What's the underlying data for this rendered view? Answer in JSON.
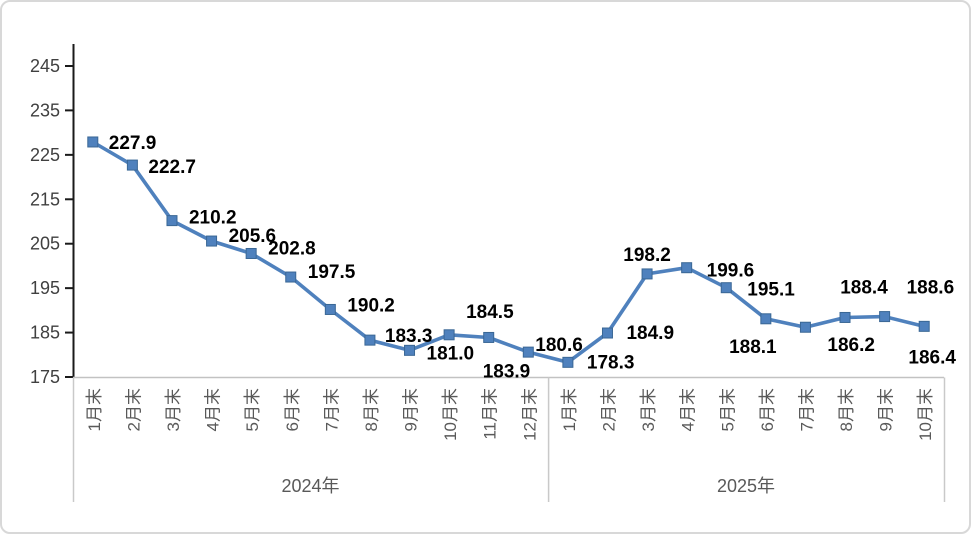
{
  "frame": {
    "background": "#FFFFFF",
    "border_color": "#D8D8D8"
  },
  "chart_data": {
    "type": "line",
    "title": "",
    "legend": "none",
    "grid": false,
    "series": [
      {
        "name": "",
        "color": "#4F81BD",
        "marker": "square",
        "marker_edge_color": "#3A6795",
        "values": [
          227.9,
          222.7,
          210.2,
          205.6,
          202.8,
          197.5,
          190.2,
          183.3,
          181.0,
          184.5,
          183.9,
          180.6,
          178.3,
          184.9,
          198.2,
          199.6,
          195.1,
          188.1,
          186.2,
          188.4,
          188.6,
          186.4
        ]
      }
    ],
    "categories": [
      "1月末",
      "2月末",
      "3月末",
      "4月末",
      "5月末",
      "6月末",
      "7月末",
      "8月末",
      "9月末",
      "10月末",
      "11月末",
      "12月末",
      "1月末",
      "2月末",
      "3月末",
      "4月末",
      "5月末",
      "6月末",
      "7月末",
      "8月末",
      "9月末",
      "10月末"
    ],
    "category_groups": [
      {
        "label": "2024年",
        "count": 12
      },
      {
        "label": "2025年",
        "count": 10
      }
    ],
    "y_axis": {
      "min": 175,
      "max": 245,
      "step": 10,
      "tick_labels": [
        "245",
        "235",
        "225",
        "215",
        "205",
        "195",
        "185",
        "175"
      ]
    },
    "x_axis": {
      "label_rotation": -90
    },
    "data_labels": {
      "show": true,
      "decimals": 1,
      "color": "#000000",
      "placements": [
        [
          "s",
          16,
          7
        ],
        [
          "s",
          16,
          8
        ],
        [
          "s",
          17,
          3
        ],
        [
          "s",
          17,
          1
        ],
        [
          "s",
          17,
          1
        ],
        [
          "s",
          17,
          1
        ],
        [
          "s",
          17,
          2
        ],
        [
          "s",
          15,
          2
        ],
        [
          "s",
          17,
          9
        ],
        [
          "s",
          17,
          -17
        ],
        [
          "s",
          -6,
          40
        ],
        [
          "s",
          7,
          -1
        ],
        [
          "s",
          19,
          6
        ],
        [
          "s",
          19,
          6
        ],
        [
          "m",
          0,
          -13
        ],
        [
          "s",
          20,
          9
        ],
        [
          "s",
          21,
          8
        ],
        [
          "m",
          -13,
          34
        ],
        [
          "s",
          22,
          24
        ],
        [
          "m",
          19,
          -24
        ],
        [
          "s",
          22,
          -23
        ],
        [
          "m",
          8,
          37
        ]
      ]
    },
    "colors": {
      "value_axis_line": "#1a1a1a",
      "value_axis_text": "#404040",
      "category_axis_line": "#C2C2C2",
      "category_text": "#595959",
      "group_divider": "#C9C9C9"
    }
  }
}
